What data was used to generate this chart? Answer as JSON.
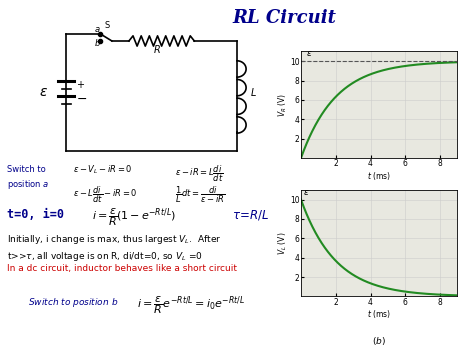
{
  "title": "RL Circuit",
  "title_color": "#00008B",
  "title_fontsize": 13,
  "bg_color": "#ffffff",
  "graph_bg": "#e8e8e0",
  "tau": 2.0,
  "epsilon": 10,
  "t_max": 9,
  "graph_color": "#228B22",
  "dashed_color": "#555555",
  "text_color_blue": "#00008B",
  "text_color_red": "#CC0000",
  "text_color_black": "#000000",
  "yticks": [
    2,
    4,
    6,
    8,
    10
  ],
  "xticks": [
    2,
    4,
    6,
    8
  ],
  "figsize": [
    4.74,
    3.55
  ],
  "dpi": 100
}
